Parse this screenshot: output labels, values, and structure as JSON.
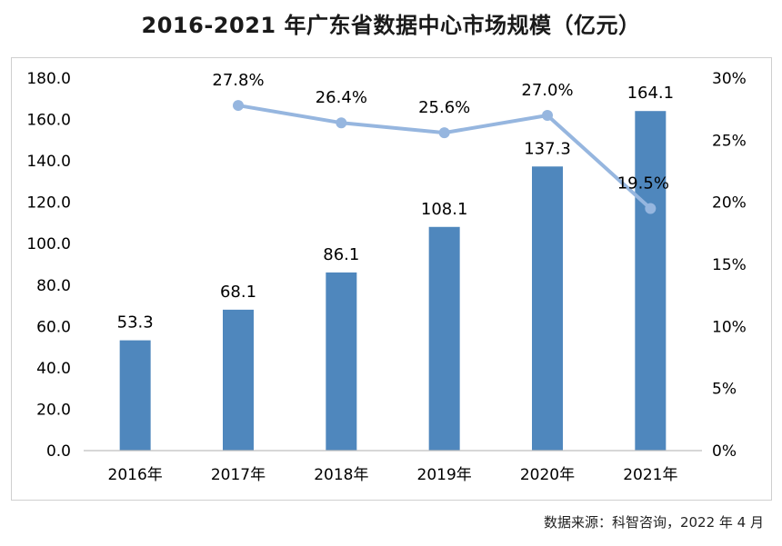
{
  "title": "2016-2021 年广东省数据中心市场规模（亿元）",
  "source": "数据来源：科智咨询，2022 年 4 月",
  "colors": {
    "bar": "#4f87bd",
    "line": "#96b6df",
    "axis": "#bfbfbf",
    "text": "#000000"
  },
  "chart_data": {
    "type": "bar+line",
    "title": "2016-2021 年广东省数据中心市场规模（亿元）",
    "categories": [
      "2016年",
      "2017年",
      "2018年",
      "2019年",
      "2020年",
      "2021年"
    ],
    "bar_series": {
      "values": [
        53.3,
        68.1,
        86.1,
        108.1,
        137.3,
        164.1
      ],
      "labels": [
        "53.3",
        "68.1",
        "86.1",
        "108.1",
        "137.3",
        "164.1"
      ]
    },
    "line_series": {
      "values": [
        null,
        27.8,
        26.4,
        25.6,
        27.0,
        19.5
      ],
      "labels": [
        "",
        "27.8%",
        "26.4%",
        "25.6%",
        "27.0%",
        "19.5%"
      ]
    },
    "y_left": {
      "min": 0,
      "max": 180,
      "ticks": [
        "0.0",
        "20.0",
        "40.0",
        "60.0",
        "80.0",
        "100.0",
        "120.0",
        "140.0",
        "160.0",
        "180.0"
      ]
    },
    "y_right": {
      "min": 0,
      "max": 30,
      "ticks": [
        "0%",
        "5%",
        "10%",
        "15%",
        "20%",
        "25%",
        "30%"
      ]
    },
    "grid": false,
    "legend": "none"
  }
}
